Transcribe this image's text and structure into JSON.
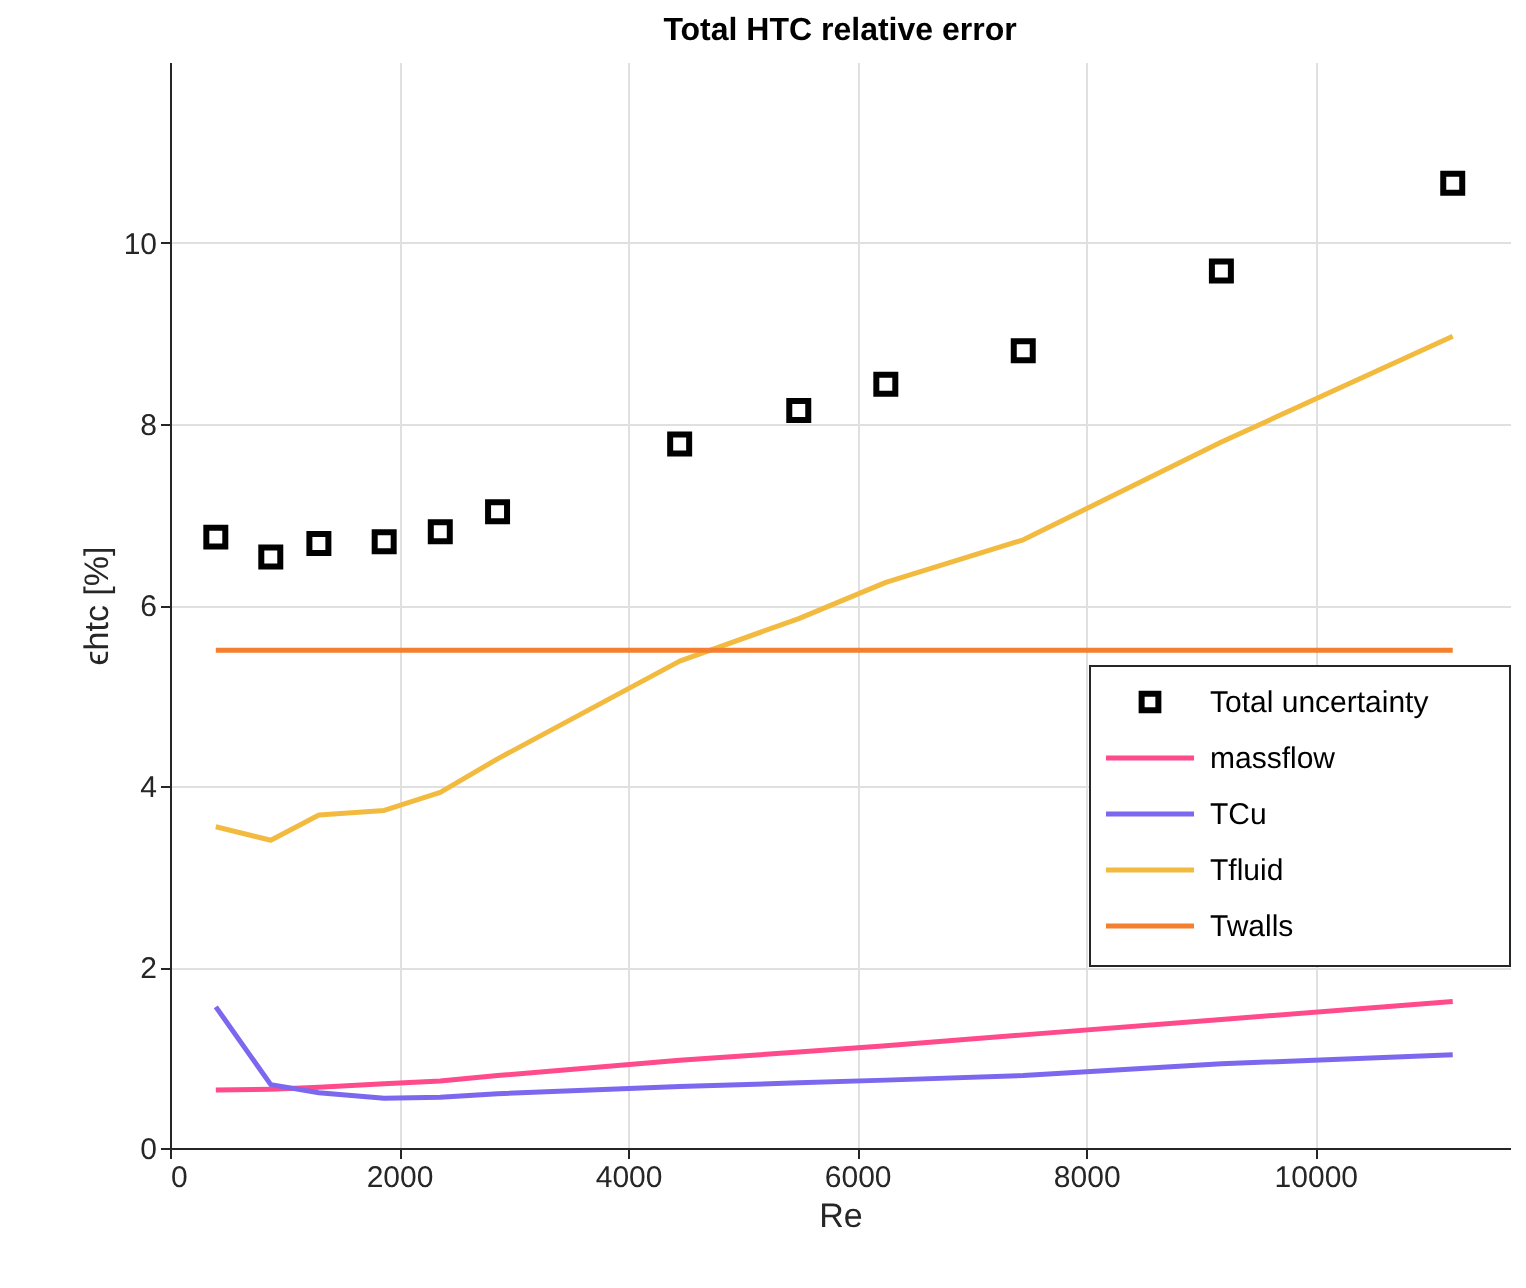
{
  "chart_data": {
    "type": "line",
    "title": "Total HTC relative error",
    "xlabel": "Re",
    "ylabel": "ϵhtc [%]",
    "x": [
      400,
      880,
      1300,
      1870,
      2360,
      2860,
      4450,
      5490,
      6250,
      7450,
      9180,
      11200
    ],
    "series": [
      {
        "name": "Total uncertainty",
        "type": "scatter",
        "marker": "square",
        "color": "#000000",
        "values": [
          6.75,
          6.53,
          6.68,
          6.7,
          6.81,
          7.03,
          7.78,
          8.15,
          8.44,
          8.81,
          9.69,
          10.66
        ]
      },
      {
        "name": "massflow",
        "color": "#ff4a8b",
        "values": [
          0.64,
          0.65,
          0.67,
          0.71,
          0.74,
          0.8,
          0.97,
          1.06,
          1.13,
          1.25,
          1.42,
          1.62
        ]
      },
      {
        "name": "TCu",
        "color": "#7b68ee",
        "values": [
          1.56,
          0.7,
          0.61,
          0.55,
          0.56,
          0.6,
          0.68,
          0.72,
          0.75,
          0.8,
          0.93,
          1.03
        ]
      },
      {
        "name": "Tfluid",
        "color": "#f2bb40",
        "values": [
          3.55,
          3.4,
          3.68,
          3.73,
          3.93,
          4.3,
          5.38,
          5.85,
          6.25,
          6.72,
          7.8,
          8.97
        ]
      },
      {
        "name": "Twalls",
        "color": "#f47f2e",
        "values": [
          5.5,
          5.5,
          5.5,
          5.5,
          5.5,
          5.5,
          5.5,
          5.5,
          5.5,
          5.5,
          5.5,
          5.5
        ]
      }
    ],
    "xlim": [
      0,
      11700
    ],
    "ylim": [
      0,
      12
    ],
    "xticks": [
      0,
      2000,
      4000,
      6000,
      8000,
      10000
    ],
    "yticks": [
      0,
      2,
      4,
      6,
      8,
      10
    ],
    "grid": true,
    "legend": "right"
  }
}
